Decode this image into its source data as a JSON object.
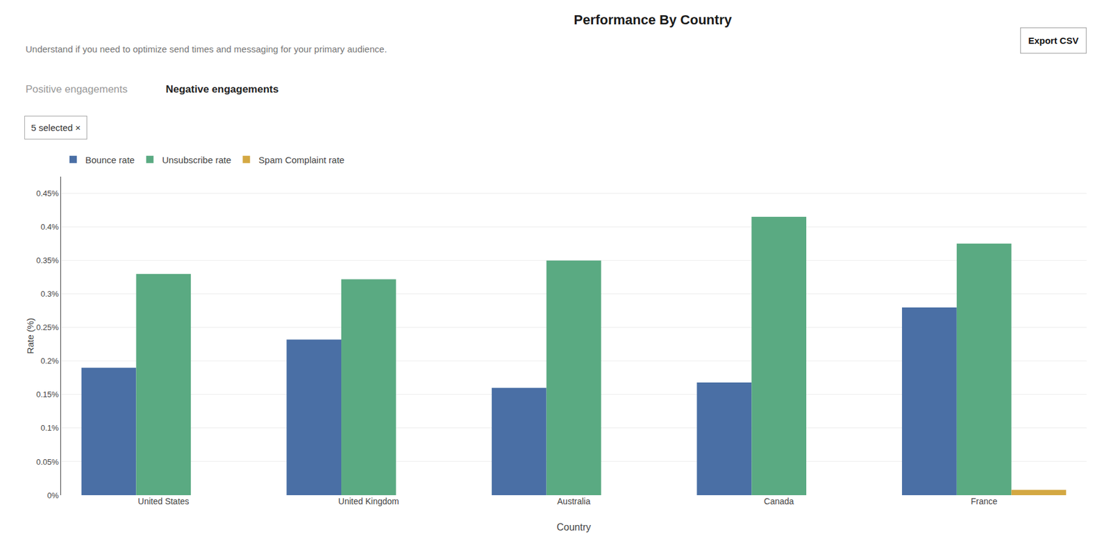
{
  "chart_data": {
    "type": "bar",
    "title": "Performance By Country",
    "subtitle": "Understand if you need to optimize send times and messaging for your primary audience.",
    "annotations": [
      "Export CSV",
      "Positive engagements",
      "Negative engagements",
      "5 selected ×"
    ],
    "xlabel": "Country",
    "ylabel": "Rate (%)",
    "categories": [
      "United States",
      "United Kingdom",
      "Australia",
      "Canada",
      "France"
    ],
    "series": [
      {
        "name": "Bounce rate",
        "color": "#4a6fa5",
        "values": [
          0.19,
          0.232,
          0.16,
          0.168,
          0.28
        ]
      },
      {
        "name": "Unsubscribe rate",
        "color": "#5aaa82",
        "values": [
          0.33,
          0.322,
          0.35,
          0.415,
          0.375
        ]
      },
      {
        "name": "Spam Complaint rate",
        "color": "#d4a843",
        "values": [
          0.0,
          0.0,
          0.0,
          0.0,
          0.008
        ]
      }
    ],
    "ylim": [
      0,
      0.475
    ],
    "yticks": [
      {
        "value": 0,
        "label": "0%"
      },
      {
        "value": 0.05,
        "label": "0.05%"
      },
      {
        "value": 0.1,
        "label": "0.1%"
      },
      {
        "value": 0.15,
        "label": "0.15%"
      },
      {
        "value": 0.2,
        "label": "0.2%"
      },
      {
        "value": 0.25,
        "label": "0.25%"
      },
      {
        "value": 0.3,
        "label": "0.3%"
      },
      {
        "value": 0.35,
        "label": "0.35%"
      },
      {
        "value": 0.4,
        "label": "0.4%"
      },
      {
        "value": 0.45,
        "label": "0.45%"
      }
    ],
    "grid": true,
    "legend": "top left"
  }
}
